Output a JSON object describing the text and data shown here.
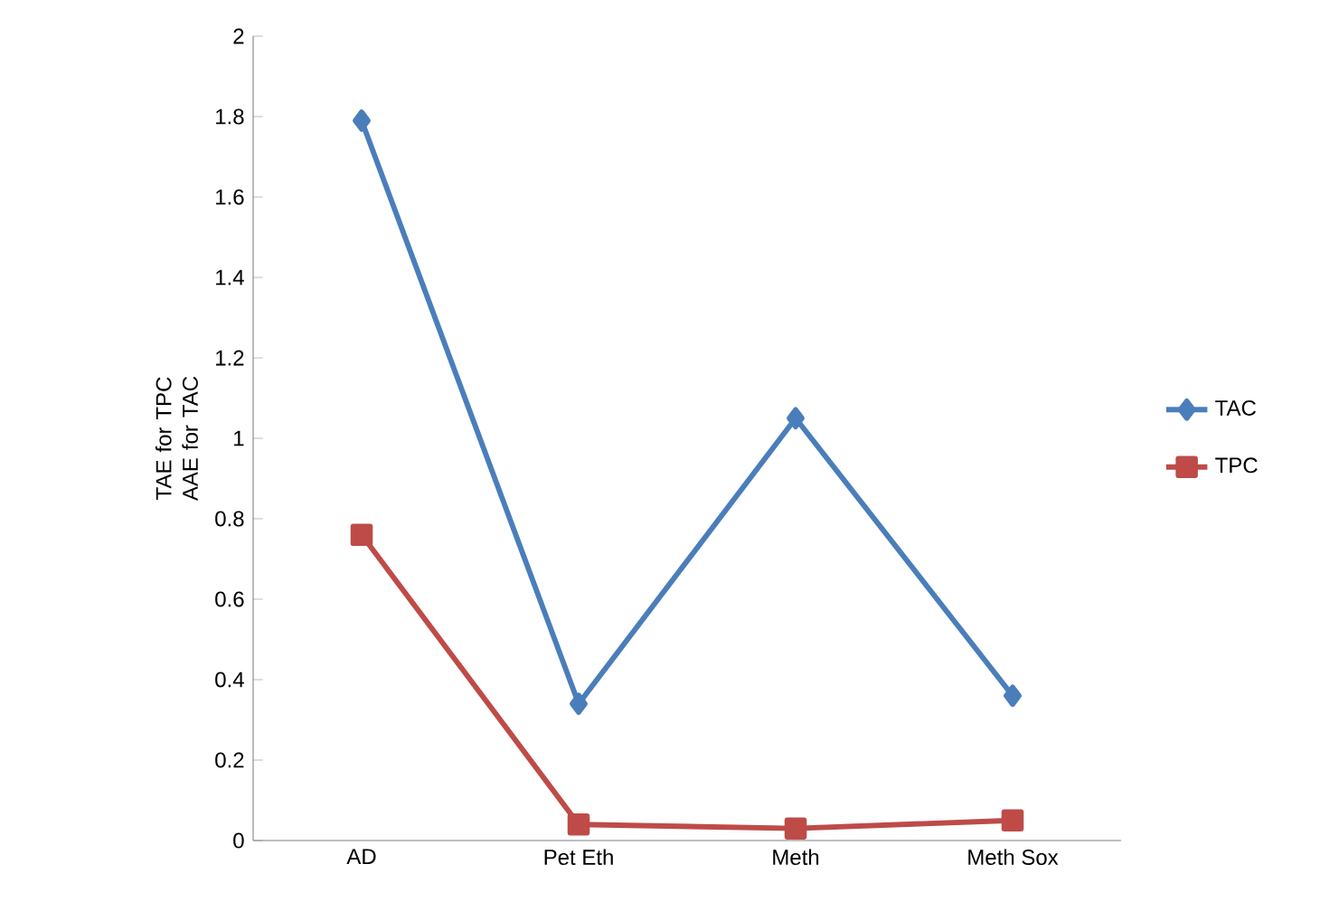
{
  "chart_data": {
    "type": "line",
    "ylabel": "TAE for TPC AAE for TAC",
    "categories": [
      "AD",
      "Pet Eth",
      "Meth",
      "Meth Sox"
    ],
    "series": [
      {
        "name": "TAC",
        "color": "#4a7ebb",
        "marker": "diamond",
        "values": [
          1.79,
          0.34,
          1.05,
          0.36
        ]
      },
      {
        "name": "TPC",
        "color": "#be4b48",
        "marker": "square",
        "values": [
          0.76,
          0.04,
          0.03,
          0.05
        ]
      }
    ],
    "ylim": [
      0,
      2
    ],
    "yticks": [
      0,
      0.2,
      0.4,
      0.6,
      0.8,
      1,
      1.2,
      1.4,
      1.6,
      1.8,
      2
    ],
    "grid": false,
    "legend": "right"
  }
}
